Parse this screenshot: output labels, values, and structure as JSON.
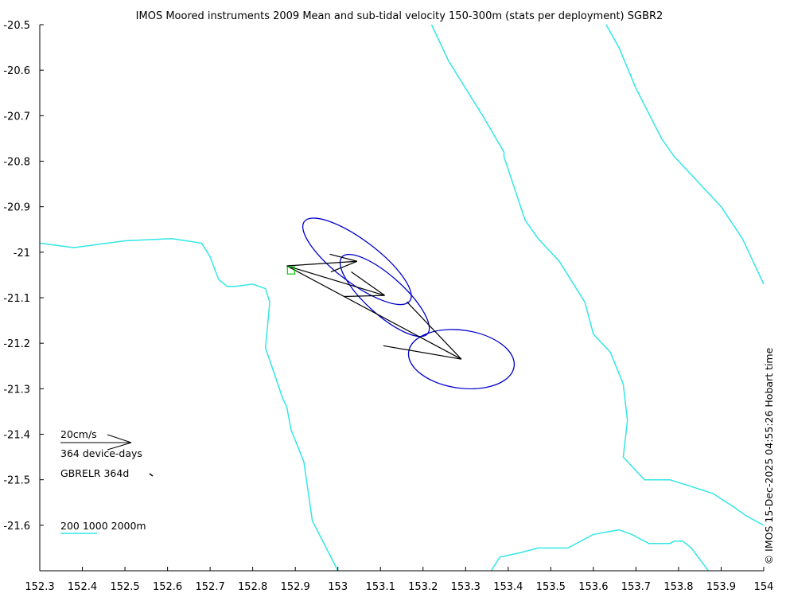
{
  "chart_data": {
    "type": "map",
    "title": "IMOS Moored instruments 2009 Mean and sub-tidal velocity 150-300m (stats per deployment) SGBR2",
    "credit": "© IMOS 15-Dec-2025 04:55:26 Hobart time",
    "xlim": [
      152.3,
      154.0
    ],
    "ylim": [
      -21.7,
      -20.5
    ],
    "x_ticks": [
      152.3,
      152.4,
      152.5,
      152.6,
      152.7,
      152.8,
      152.9,
      153,
      153.1,
      153.2,
      153.3,
      153.4,
      153.5,
      153.6,
      153.7,
      153.8,
      153.9,
      154
    ],
    "x_tick_labels": [
      "152.3",
      "152.4",
      "152.5",
      "152.6",
      "152.7",
      "152.8",
      "152.9",
      "153",
      "153.1",
      "153.2",
      "153.3",
      "153.4",
      "153.5",
      "153.6",
      "153.7",
      "153.8",
      "153.9",
      "154"
    ],
    "y_ticks": [
      -20.5,
      -20.6,
      -20.7,
      -20.8,
      -20.9,
      -21,
      -21.1,
      -21.2,
      -21.3,
      -21.4,
      -21.5,
      -21.6
    ],
    "y_tick_labels": [
      "-20.5",
      "-20.6",
      "-20.7",
      "-20.8",
      "-20.9",
      "-21",
      "-21.1",
      "-21.2",
      "-21.3",
      "-21.4",
      "-21.5",
      "-21.6"
    ],
    "mooring": {
      "lon": 152.89,
      "lat": -21.04,
      "color": "#00cc00"
    },
    "velocity_vectors": [
      {
        "start": [
          152.88,
          -21.03
        ],
        "end": [
          153.045,
          -21.02
        ],
        "color": "#000000"
      },
      {
        "start": [
          152.88,
          -21.03
        ],
        "end": [
          153.11,
          -21.095
        ],
        "color": "#000000"
      },
      {
        "start": [
          152.88,
          -21.03
        ],
        "end": [
          153.29,
          -21.235
        ],
        "color": "#000000"
      }
    ],
    "variance_ellipses": [
      {
        "center": [
          153.045,
          -21.02
        ],
        "rx_deg": 0.155,
        "ry_deg": 0.05,
        "angle_deg": 37,
        "color": "#0000cc"
      },
      {
        "center": [
          153.11,
          -21.095
        ],
        "rx_deg": 0.135,
        "ry_deg": 0.045,
        "angle_deg": 42,
        "color": "#0000cc"
      },
      {
        "center": [
          153.29,
          -21.235
        ],
        "rx_deg": 0.125,
        "ry_deg": 0.068,
        "angle_deg": 8,
        "color": "#0000cc"
      }
    ],
    "bathymetry": {
      "color": "#33e6e6",
      "contours": [
        [
          [
            152.3,
            -20.98
          ],
          [
            152.38,
            -20.99
          ],
          [
            152.5,
            -20.975
          ],
          [
            152.61,
            -20.97
          ],
          [
            152.68,
            -20.98
          ],
          [
            152.7,
            -21.01
          ],
          [
            152.72,
            -21.06
          ],
          [
            152.74,
            -21.075
          ],
          [
            152.76,
            -21.075
          ],
          [
            152.8,
            -21.07
          ],
          [
            152.83,
            -21.08
          ],
          [
            152.84,
            -21.11
          ],
          [
            152.83,
            -21.21
          ],
          [
            152.87,
            -21.32
          ],
          [
            152.88,
            -21.34
          ],
          [
            152.89,
            -21.39
          ],
          [
            152.92,
            -21.46
          ],
          [
            152.94,
            -21.59
          ],
          [
            153.0,
            -21.7
          ]
        ],
        [
          [
            153.22,
            -20.5
          ],
          [
            153.26,
            -20.58
          ],
          [
            153.34,
            -20.7
          ],
          [
            153.39,
            -20.78
          ],
          [
            153.39,
            -20.79
          ],
          [
            153.44,
            -20.93
          ],
          [
            153.47,
            -20.97
          ],
          [
            153.52,
            -21.02
          ],
          [
            153.58,
            -21.11
          ],
          [
            153.6,
            -21.18
          ],
          [
            153.64,
            -21.22
          ],
          [
            153.67,
            -21.29
          ],
          [
            153.68,
            -21.37
          ],
          [
            153.67,
            -21.45
          ],
          [
            153.7,
            -21.48
          ],
          [
            153.72,
            -21.5
          ],
          [
            153.78,
            -21.5
          ],
          [
            153.88,
            -21.53
          ],
          [
            153.93,
            -21.56
          ],
          [
            153.96,
            -21.58
          ],
          [
            154.0,
            -21.6
          ]
        ],
        [
          [
            153.63,
            -20.5
          ],
          [
            153.66,
            -20.55
          ],
          [
            153.7,
            -20.64
          ],
          [
            153.76,
            -20.75
          ],
          [
            153.79,
            -20.79
          ],
          [
            153.84,
            -20.84
          ],
          [
            153.9,
            -20.9
          ],
          [
            153.95,
            -20.97
          ],
          [
            154.0,
            -21.07
          ]
        ],
        [
          [
            153.36,
            -21.7
          ],
          [
            153.38,
            -21.67
          ],
          [
            153.43,
            -21.66
          ],
          [
            153.47,
            -21.65
          ],
          [
            153.54,
            -21.65
          ],
          [
            153.6,
            -21.62
          ],
          [
            153.66,
            -21.61
          ],
          [
            153.69,
            -21.62
          ],
          [
            153.71,
            -21.63
          ],
          [
            153.73,
            -21.64
          ],
          [
            153.78,
            -21.64
          ],
          [
            153.79,
            -21.635
          ],
          [
            153.81,
            -21.635
          ],
          [
            153.83,
            -21.65
          ],
          [
            153.87,
            -21.7
          ]
        ]
      ]
    },
    "scale_vector": {
      "label": "20cm/s",
      "sublabel": "364 device-days"
    },
    "deployment_label": "GBRELR 364d",
    "depth_legend": {
      "label": "200 1000 2000m"
    }
  }
}
